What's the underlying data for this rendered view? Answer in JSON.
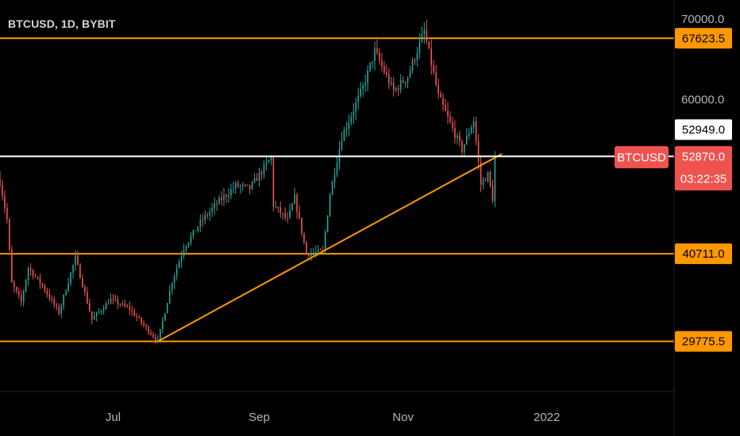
{
  "header": {
    "title": "BTCUSD, 1D, BYBIT"
  },
  "colors": {
    "background": "#000000",
    "up": "#26a69a",
    "down": "#ef5350",
    "level": "#ff9800",
    "current_line": "#ffffff",
    "last_badge": "#ef5350",
    "axis_text": "#b2b5be"
  },
  "chart_data": {
    "type": "candlestick",
    "title": "BTCUSD, 1D, BYBIT",
    "symbol": "BTCUSD",
    "interval": "1D",
    "exchange": "BYBIT",
    "ylim": [
      23500,
      72400
    ],
    "xlim": [
      "2021-05-14",
      "2022-02-24"
    ],
    "y_ticks": [
      "70000.0",
      "60000.0"
    ],
    "x_ticks": [
      {
        "label": "Jul",
        "date": "2021-07-01"
      },
      {
        "label": "Sep",
        "date": "2021-09-01"
      },
      {
        "label": "Nov",
        "date": "2021-11-01"
      },
      {
        "label": "2022",
        "date": "2022-01-01"
      }
    ],
    "horizontal_levels": [
      {
        "value": 67623.5,
        "label": "67623.5",
        "color": "#ff9800"
      },
      {
        "value": 40711.0,
        "label": "40711.0",
        "color": "#ff9800"
      },
      {
        "value": 29775.5,
        "label": "29775.5",
        "color": "#ff9800"
      }
    ],
    "current_line": {
      "value": 52870.0,
      "color": "#ffffff"
    },
    "trendline": {
      "start": {
        "date": "2021-07-20",
        "price": 29775.5
      },
      "end": {
        "date": "2021-12-13",
        "price": 53200
      },
      "color": "#ff9800"
    },
    "price_labels": [
      {
        "text": "52949.0",
        "value": 52949.0,
        "style": "white"
      },
      {
        "text": "52870.0",
        "value": 52870.0,
        "style": "red"
      }
    ],
    "last_price": {
      "symbol": "BTCUSD",
      "price": "52870.0",
      "countdown": "03:22:35"
    },
    "anchors": [
      [
        "2021-05-14",
        49700
      ],
      [
        "2021-05-17",
        45000
      ],
      [
        "2021-05-19",
        37000
      ],
      [
        "2021-05-23",
        34700
      ],
      [
        "2021-05-26",
        39000
      ],
      [
        "2021-06-01",
        36700
      ],
      [
        "2021-06-08",
        33400
      ],
      [
        "2021-06-15",
        40200
      ],
      [
        "2021-06-22",
        32500
      ],
      [
        "2021-06-30",
        35000
      ],
      [
        "2021-07-08",
        33800
      ],
      [
        "2021-07-20",
        29800
      ],
      [
        "2021-07-26",
        37300
      ],
      [
        "2021-07-31",
        41500
      ],
      [
        "2021-08-07",
        44600
      ],
      [
        "2021-08-14",
        47000
      ],
      [
        "2021-08-22",
        49200
      ],
      [
        "2021-08-28",
        48900
      ],
      [
        "2021-09-06",
        52700
      ],
      [
        "2021-09-07",
        46800
      ],
      [
        "2021-09-13",
        44900
      ],
      [
        "2021-09-16",
        47700
      ],
      [
        "2021-09-21",
        40700
      ],
      [
        "2021-09-28",
        41000
      ],
      [
        "2021-10-01",
        48200
      ],
      [
        "2021-10-06",
        55300
      ],
      [
        "2021-10-15",
        61500
      ],
      [
        "2021-10-20",
        66000
      ],
      [
        "2021-10-28",
        61000
      ],
      [
        "2021-11-03",
        62900
      ],
      [
        "2021-11-10",
        68500
      ],
      [
        "2021-11-16",
        60400
      ],
      [
        "2021-11-22",
        56300
      ],
      [
        "2021-11-26",
        53700
      ],
      [
        "2021-12-01",
        57400
      ],
      [
        "2021-12-04",
        49400
      ],
      [
        "2021-12-07",
        50600
      ],
      [
        "2021-12-09",
        47600
      ],
      [
        "2021-12-10",
        52870
      ]
    ]
  }
}
